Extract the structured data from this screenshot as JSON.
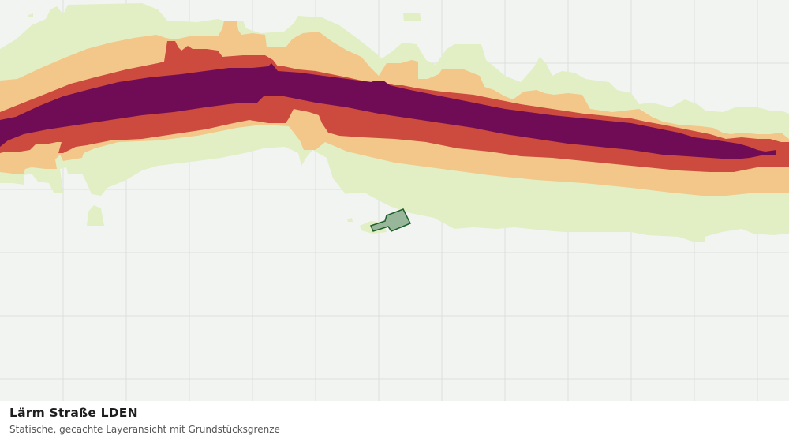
{
  "caption": {
    "title": "Lärm Straße LDEN",
    "subtitle": "Statische, gecachte Layeransicht mit Grundstücksgrenze"
  },
  "colors": {
    "map_background": "#f2f4f2",
    "grid": "#dcdfdc",
    "band_lowest": "#e2efc4",
    "band_low": "#f3c68a",
    "band_high": "#cc4a3e",
    "band_highest": "#6f0c55",
    "parcel_fill": "#98b79a",
    "parcel_stroke": "#1f5f2a"
  },
  "layers": {
    "noise_bands": [
      "band_lowest",
      "band_low",
      "band_high",
      "band_highest"
    ],
    "parcel": "parcel"
  }
}
